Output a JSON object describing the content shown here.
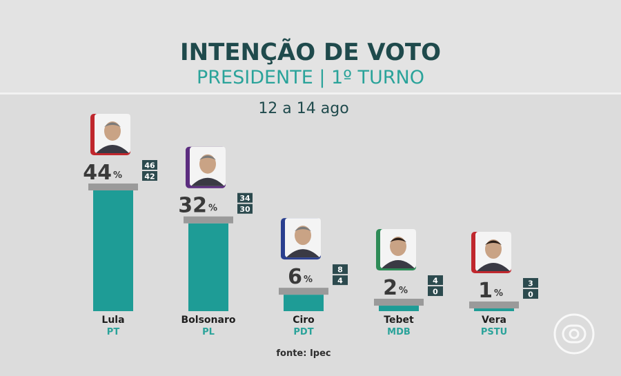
{
  "header": {
    "title": "INTENÇÃO DE VOTO",
    "subtitle": "PRESIDENTE | 1º TURNO",
    "date": "12 a 14 ago"
  },
  "footer": {
    "source": "fonte: Ipec"
  },
  "colors": {
    "bar": "#1e9c96",
    "bar_cap": "#9a9a9a",
    "range_box": "#2c4a4e",
    "party": "#2aa39a"
  },
  "chart_data": {
    "type": "bar",
    "title": "INTENÇÃO DE VOTO",
    "subtitle": "PRESIDENTE | 1º TURNO",
    "date_range": "12 a 14 ago",
    "unit": "%",
    "categories": [
      "Lula",
      "Bolsonaro",
      "Ciro",
      "Tebet",
      "Vera"
    ],
    "parties": [
      "PT",
      "PL",
      "PDT",
      "MDB",
      "PSTU"
    ],
    "values": [
      44,
      32,
      6,
      2,
      1
    ],
    "upper": [
      46,
      34,
      8,
      4,
      3
    ],
    "lower": [
      42,
      30,
      4,
      0,
      0
    ],
    "photo_frame_colors": [
      "#c0272d",
      "#5b2d7f",
      "#2a3f8f",
      "#2e8b57",
      "#c0272d"
    ],
    "ylim": [
      0,
      44
    ],
    "grid": false,
    "source": "fonte: Ipec"
  }
}
